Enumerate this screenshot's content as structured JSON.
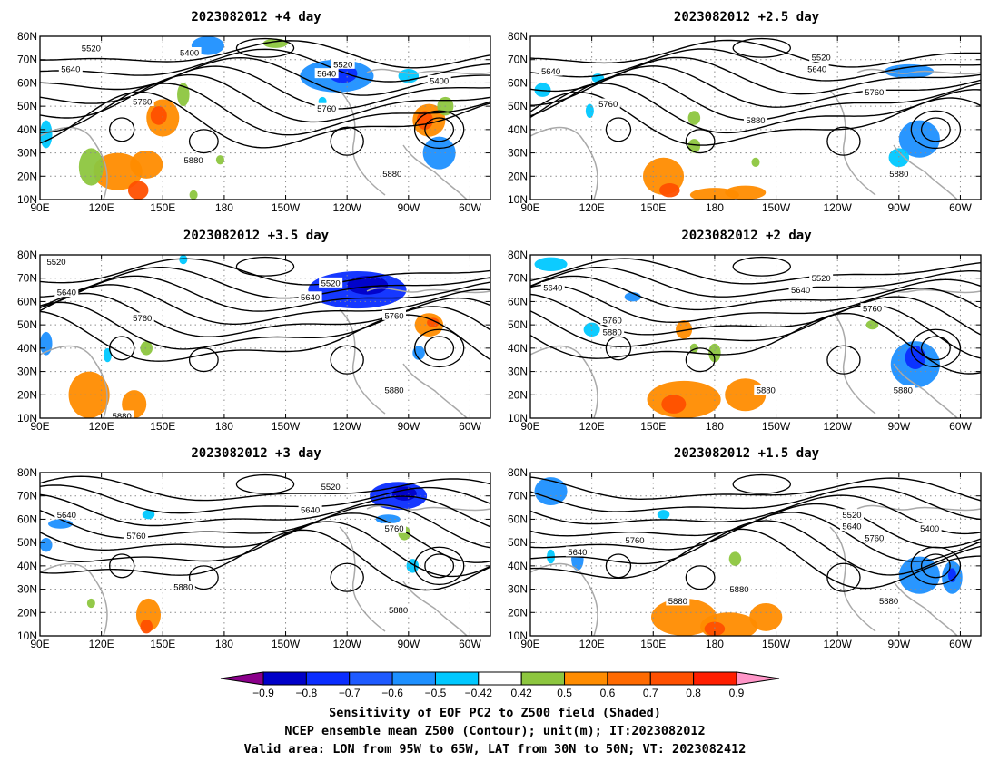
{
  "panels": [
    {
      "title": "2023082012  +4 day",
      "labels": [
        {
          "t": "5520",
          "lon": 115,
          "lat": 75
        },
        {
          "t": "5400",
          "lon": 163,
          "lat": 73
        },
        {
          "t": "5640",
          "lon": 105,
          "lat": 66
        },
        {
          "t": "5520",
          "lon": 238,
          "lat": 68
        },
        {
          "t": "5640",
          "lon": 230,
          "lat": 64
        },
        {
          "t": "5400",
          "lon": 285,
          "lat": 61
        },
        {
          "t": "5760",
          "lon": 140,
          "lat": 52
        },
        {
          "t": "5760",
          "lon": 230,
          "lat": 49
        },
        {
          "t": "5880",
          "lon": 165,
          "lat": 27
        },
        {
          "t": "5880",
          "lon": 262,
          "lat": 21
        }
      ],
      "blobs": [
        {
          "lon": 150,
          "lat": 45,
          "rx": 8,
          "ry": 8,
          "c": "#ff8c00"
        },
        {
          "lon": 148,
          "lat": 46,
          "rx": 4,
          "ry": 4,
          "c": "#ff5000"
        },
        {
          "lon": 160,
          "lat": 55,
          "rx": 3,
          "ry": 5,
          "c": "#8dc63f"
        },
        {
          "lon": 128,
          "lat": 22,
          "rx": 12,
          "ry": 8,
          "c": "#ff8c00"
        },
        {
          "lon": 142,
          "lat": 25,
          "rx": 8,
          "ry": 6,
          "c": "#ff8c00"
        },
        {
          "lon": 138,
          "lat": 14,
          "rx": 5,
          "ry": 4,
          "c": "#ff5000"
        },
        {
          "lon": 115,
          "lat": 24,
          "rx": 6,
          "ry": 8,
          "c": "#8dc63f"
        },
        {
          "lon": 280,
          "lat": 44,
          "rx": 8,
          "ry": 7,
          "c": "#ff8c00"
        },
        {
          "lon": 278,
          "lat": 44,
          "rx": 4,
          "ry": 4,
          "c": "#ff5000"
        },
        {
          "lon": 288,
          "lat": 50,
          "rx": 4,
          "ry": 4,
          "c": "#8dc63f"
        },
        {
          "lon": 235,
          "lat": 63,
          "rx": 18,
          "ry": 7,
          "c": "#1e90ff"
        },
        {
          "lon": 238,
          "lat": 64,
          "rx": 7,
          "ry": 4,
          "c": "#0a2dff"
        },
        {
          "lon": 172,
          "lat": 76,
          "rx": 8,
          "ry": 4,
          "c": "#1e90ff"
        },
        {
          "lon": 205,
          "lat": 77,
          "rx": 6,
          "ry": 2,
          "c": "#8dc63f"
        },
        {
          "lon": 285,
          "lat": 30,
          "rx": 8,
          "ry": 7,
          "c": "#1e90ff"
        },
        {
          "lon": 270,
          "lat": 63,
          "rx": 5,
          "ry": 3,
          "c": "#00c8ff"
        },
        {
          "lon": 93,
          "lat": 38,
          "rx": 3,
          "ry": 6,
          "c": "#00c8ff"
        },
        {
          "lon": 178,
          "lat": 27,
          "rx": 2,
          "ry": 2,
          "c": "#8dc63f"
        },
        {
          "lon": 228,
          "lat": 52,
          "rx": 2,
          "ry": 2,
          "c": "#00c8ff"
        },
        {
          "lon": 165,
          "lat": 12,
          "rx": 2,
          "ry": 2,
          "c": "#8dc63f"
        }
      ]
    },
    {
      "title": "2023082012  +2.5 day",
      "labels": [
        {
          "t": "5520",
          "lon": 232,
          "lat": 71
        },
        {
          "t": "5640",
          "lon": 100,
          "lat": 65
        },
        {
          "t": "5640",
          "lon": 230,
          "lat": 66
        },
        {
          "t": "5760",
          "lon": 128,
          "lat": 51
        },
        {
          "t": "5760",
          "lon": 258,
          "lat": 56
        },
        {
          "t": "5880",
          "lon": 200,
          "lat": 44
        },
        {
          "t": "5880",
          "lon": 270,
          "lat": 21
        }
      ],
      "blobs": [
        {
          "lon": 280,
          "lat": 36,
          "rx": 10,
          "ry": 8,
          "c": "#1e90ff"
        },
        {
          "lon": 270,
          "lat": 28,
          "rx": 5,
          "ry": 4,
          "c": "#00c8ff"
        },
        {
          "lon": 275,
          "lat": 65,
          "rx": 12,
          "ry": 3,
          "c": "#1e90ff"
        },
        {
          "lon": 155,
          "lat": 20,
          "rx": 10,
          "ry": 8,
          "c": "#ff8c00"
        },
        {
          "lon": 158,
          "lat": 14,
          "rx": 5,
          "ry": 3,
          "c": "#ff5000"
        },
        {
          "lon": 180,
          "lat": 12,
          "rx": 12,
          "ry": 3,
          "c": "#ff8c00"
        },
        {
          "lon": 195,
          "lat": 13,
          "rx": 10,
          "ry": 3,
          "c": "#ff8c00"
        },
        {
          "lon": 170,
          "lat": 45,
          "rx": 3,
          "ry": 3,
          "c": "#8dc63f"
        },
        {
          "lon": 96,
          "lat": 57,
          "rx": 4,
          "ry": 3,
          "c": "#00c8ff"
        },
        {
          "lon": 119,
          "lat": 48,
          "rx": 2,
          "ry": 3,
          "c": "#00c8ff"
        },
        {
          "lon": 170,
          "lat": 33,
          "rx": 3,
          "ry": 3,
          "c": "#8dc63f"
        },
        {
          "lon": 200,
          "lat": 26,
          "rx": 2,
          "ry": 2,
          "c": "#8dc63f"
        },
        {
          "lon": 123,
          "lat": 62,
          "rx": 3,
          "ry": 2,
          "c": "#00c8ff"
        }
      ]
    },
    {
      "title": "2023082012  +3.5 day",
      "labels": [
        {
          "t": "5520",
          "lon": 98,
          "lat": 77
        },
        {
          "t": "5520",
          "lon": 232,
          "lat": 68
        },
        {
          "t": "5640",
          "lon": 103,
          "lat": 64
        },
        {
          "t": "5640",
          "lon": 222,
          "lat": 62
        },
        {
          "t": "5760",
          "lon": 140,
          "lat": 53
        },
        {
          "t": "5760",
          "lon": 263,
          "lat": 54
        },
        {
          "t": "5880",
          "lon": 130,
          "lat": 11
        },
        {
          "t": "5880",
          "lon": 263,
          "lat": 22
        }
      ],
      "blobs": [
        {
          "lon": 245,
          "lat": 65,
          "rx": 24,
          "ry": 8,
          "c": "#0a2dff"
        },
        {
          "lon": 250,
          "lat": 67,
          "rx": 10,
          "ry": 4,
          "c": "#0000c8"
        },
        {
          "lon": 280,
          "lat": 50,
          "rx": 7,
          "ry": 5,
          "c": "#ff8c00"
        },
        {
          "lon": 282,
          "lat": 51,
          "rx": 3,
          "ry": 2,
          "c": "#ff5000"
        },
        {
          "lon": 114,
          "lat": 20,
          "rx": 10,
          "ry": 10,
          "c": "#ff8c00"
        },
        {
          "lon": 136,
          "lat": 16,
          "rx": 6,
          "ry": 6,
          "c": "#ff8c00"
        },
        {
          "lon": 93,
          "lat": 42,
          "rx": 3,
          "ry": 5,
          "c": "#1e90ff"
        },
        {
          "lon": 275,
          "lat": 38,
          "rx": 3,
          "ry": 3,
          "c": "#1e90ff"
        },
        {
          "lon": 142,
          "lat": 40,
          "rx": 3,
          "ry": 3,
          "c": "#8dc63f"
        },
        {
          "lon": 160,
          "lat": 78,
          "rx": 2,
          "ry": 2,
          "c": "#00c8ff"
        },
        {
          "lon": 123,
          "lat": 37,
          "rx": 2,
          "ry": 3,
          "c": "#00c8ff"
        }
      ]
    },
    {
      "title": "2023082012  +2 day",
      "labels": [
        {
          "t": "5520",
          "lon": 232,
          "lat": 70
        },
        {
          "t": "5640",
          "lon": 101,
          "lat": 66
        },
        {
          "t": "5640",
          "lon": 222,
          "lat": 65
        },
        {
          "t": "5760",
          "lon": 130,
          "lat": 52
        },
        {
          "t": "5760",
          "lon": 257,
          "lat": 57
        },
        {
          "t": "5880",
          "lon": 130,
          "lat": 47
        },
        {
          "t": "5880",
          "lon": 205,
          "lat": 22
        },
        {
          "t": "5880",
          "lon": 272,
          "lat": 22
        }
      ],
      "blobs": [
        {
          "lon": 278,
          "lat": 33,
          "rx": 12,
          "ry": 10,
          "c": "#1e90ff"
        },
        {
          "lon": 278,
          "lat": 36,
          "rx": 5,
          "ry": 5,
          "c": "#0a2dff"
        },
        {
          "lon": 165,
          "lat": 18,
          "rx": 18,
          "ry": 8,
          "c": "#ff8c00"
        },
        {
          "lon": 160,
          "lat": 16,
          "rx": 6,
          "ry": 4,
          "c": "#ff5000"
        },
        {
          "lon": 195,
          "lat": 20,
          "rx": 10,
          "ry": 7,
          "c": "#ff8c00"
        },
        {
          "lon": 165,
          "lat": 48,
          "rx": 4,
          "ry": 4,
          "c": "#ff8c00"
        },
        {
          "lon": 100,
          "lat": 76,
          "rx": 8,
          "ry": 3,
          "c": "#00c8ff"
        },
        {
          "lon": 140,
          "lat": 62,
          "rx": 4,
          "ry": 2,
          "c": "#1e90ff"
        },
        {
          "lon": 120,
          "lat": 48,
          "rx": 4,
          "ry": 3,
          "c": "#00c8ff"
        },
        {
          "lon": 180,
          "lat": 38,
          "rx": 3,
          "ry": 4,
          "c": "#8dc63f"
        },
        {
          "lon": 257,
          "lat": 50,
          "rx": 3,
          "ry": 2,
          "c": "#8dc63f"
        },
        {
          "lon": 170,
          "lat": 40,
          "rx": 2,
          "ry": 2,
          "c": "#8dc63f"
        }
      ]
    },
    {
      "title": "2023082012  +3 day",
      "labels": [
        {
          "t": "5520",
          "lon": 232,
          "lat": 74
        },
        {
          "t": "5640",
          "lon": 103,
          "lat": 62
        },
        {
          "t": "5640",
          "lon": 222,
          "lat": 64
        },
        {
          "t": "5760",
          "lon": 137,
          "lat": 53
        },
        {
          "t": "5760",
          "lon": 263,
          "lat": 56
        },
        {
          "t": "5880",
          "lon": 160,
          "lat": 31
        },
        {
          "t": "5880",
          "lon": 265,
          "lat": 21
        }
      ],
      "blobs": [
        {
          "lon": 265,
          "lat": 70,
          "rx": 14,
          "ry": 6,
          "c": "#0a2dff"
        },
        {
          "lon": 268,
          "lat": 71,
          "rx": 6,
          "ry": 3,
          "c": "#0000c8"
        },
        {
          "lon": 143,
          "lat": 19,
          "rx": 6,
          "ry": 7,
          "c": "#ff8c00"
        },
        {
          "lon": 142,
          "lat": 14,
          "rx": 3,
          "ry": 3,
          "c": "#ff5000"
        },
        {
          "lon": 100,
          "lat": 58,
          "rx": 6,
          "ry": 2,
          "c": "#1e90ff"
        },
        {
          "lon": 260,
          "lat": 60,
          "rx": 6,
          "ry": 2,
          "c": "#1e90ff"
        },
        {
          "lon": 93,
          "lat": 49,
          "rx": 3,
          "ry": 3,
          "c": "#1e90ff"
        },
        {
          "lon": 268,
          "lat": 54,
          "rx": 3,
          "ry": 3,
          "c": "#8dc63f"
        },
        {
          "lon": 143,
          "lat": 62,
          "rx": 3,
          "ry": 2,
          "c": "#00c8ff"
        },
        {
          "lon": 272,
          "lat": 40,
          "rx": 3,
          "ry": 3,
          "c": "#00c8ff"
        },
        {
          "lon": 115,
          "lat": 24,
          "rx": 2,
          "ry": 2,
          "c": "#8dc63f"
        }
      ]
    },
    {
      "title": "2023082012  +1.5 day",
      "labels": [
        {
          "t": "5520",
          "lon": 247,
          "lat": 62
        },
        {
          "t": "5400",
          "lon": 285,
          "lat": 56
        },
        {
          "t": "5640",
          "lon": 247,
          "lat": 57
        },
        {
          "t": "5760",
          "lon": 141,
          "lat": 51
        },
        {
          "t": "5760",
          "lon": 258,
          "lat": 52
        },
        {
          "t": "5640",
          "lon": 113,
          "lat": 46
        },
        {
          "t": "5880",
          "lon": 162,
          "lat": 25
        },
        {
          "t": "5880",
          "lon": 192,
          "lat": 30
        },
        {
          "t": "5880",
          "lon": 265,
          "lat": 25
        }
      ],
      "blobs": [
        {
          "lon": 280,
          "lat": 36,
          "rx": 10,
          "ry": 8,
          "c": "#1e90ff"
        },
        {
          "lon": 296,
          "lat": 35,
          "rx": 5,
          "ry": 7,
          "c": "#1e90ff"
        },
        {
          "lon": 296,
          "lat": 36,
          "rx": 2,
          "ry": 3,
          "c": "#0a2dff"
        },
        {
          "lon": 100,
          "lat": 72,
          "rx": 8,
          "ry": 6,
          "c": "#1e90ff"
        },
        {
          "lon": 165,
          "lat": 18,
          "rx": 16,
          "ry": 8,
          "c": "#ff8c00"
        },
        {
          "lon": 187,
          "lat": 14,
          "rx": 14,
          "ry": 6,
          "c": "#ff8c00"
        },
        {
          "lon": 180,
          "lat": 13,
          "rx": 5,
          "ry": 3,
          "c": "#ff5000"
        },
        {
          "lon": 205,
          "lat": 18,
          "rx": 8,
          "ry": 6,
          "c": "#ff8c00"
        },
        {
          "lon": 113,
          "lat": 43,
          "rx": 3,
          "ry": 5,
          "c": "#1e90ff"
        },
        {
          "lon": 190,
          "lat": 43,
          "rx": 3,
          "ry": 3,
          "c": "#8dc63f"
        },
        {
          "lon": 155,
          "lat": 62,
          "rx": 3,
          "ry": 2,
          "c": "#00c8ff"
        },
        {
          "lon": 100,
          "lat": 44,
          "rx": 2,
          "ry": 3,
          "c": "#00c8ff"
        }
      ]
    }
  ],
  "lat_ticks": [
    "10N",
    "20N",
    "30N",
    "40N",
    "50N",
    "60N",
    "70N",
    "80N"
  ],
  "lon_ticks": [
    "90E",
    "120E",
    "150E",
    "180",
    "150W",
    "120W",
    "90W",
    "60W"
  ],
  "colorbar": {
    "colors": [
      "#8b008b",
      "#0000c8",
      "#0a2dff",
      "#1e5aff",
      "#1e90ff",
      "#00c8ff",
      "#ffffff",
      "#8dc63f",
      "#ff8c00",
      "#ff6a00",
      "#ff5000",
      "#ff1e00",
      "#ff96c8"
    ],
    "labels": [
      "−0.9",
      "−0.8",
      "−0.7",
      "−0.6",
      "−0.5",
      "−0.42",
      "0.42",
      "0.5",
      "0.6",
      "0.7",
      "0.8",
      "0.9"
    ]
  },
  "caption": {
    "line1": "Sensitivity of EOF PC2 to Z500 field (Shaded)",
    "line2": "NCEP ensemble mean Z500 (Contour); unit(m); IT:2023082012",
    "line3": "Valid area: LON from 95W to 65W, LAT from 30N to 50N; VT: 2023082412"
  }
}
